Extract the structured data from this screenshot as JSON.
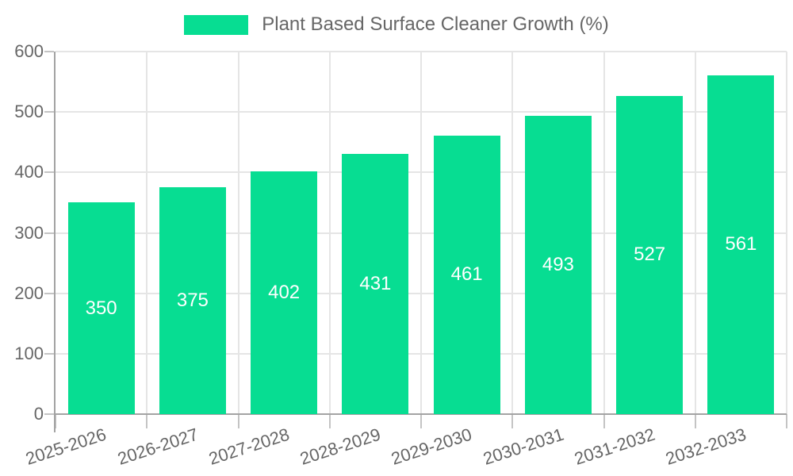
{
  "chart_data": {
    "type": "bar",
    "title": "Plant Based Surface Cleaner Growth (%)",
    "legend": {
      "position": "top",
      "label": "Plant Based Surface Cleaner Growth (%)"
    },
    "categories": [
      "2025-2026",
      "2026-2027",
      "2027-2028",
      "2028-2029",
      "2029-2030",
      "2030-2031",
      "2031-2032",
      "2032-2033"
    ],
    "values": [
      350,
      375,
      402,
      431,
      461,
      493,
      527,
      561
    ],
    "xlabel": "",
    "ylabel": "",
    "ylim": [
      0,
      600
    ],
    "yticks": [
      0,
      100,
      200,
      300,
      400,
      500,
      600
    ],
    "grid": true,
    "bar_value_labels_inside": true,
    "colors": {
      "bar": "#07DD92",
      "bar_value_label": "#FFFFFF",
      "axis_text": "#666666",
      "legend_text": "#666666",
      "gridline": "#E5E5E5",
      "axis_line": "#A3A3A3",
      "tick_mark": "#C4C4C4",
      "background": "#FFFFFF"
    }
  }
}
